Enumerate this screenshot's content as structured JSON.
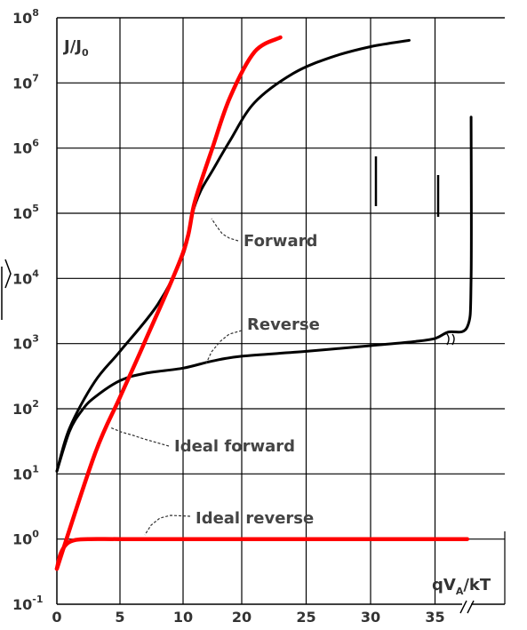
{
  "chart_data": {
    "type": "line",
    "title": "",
    "ylabel": "J/J0",
    "ylabel_main": "J/J",
    "ylabel_sub": "0",
    "xlabel": "qVA/kT",
    "xlabel_parts": {
      "pre": "qV",
      "sub": "A",
      "post": "/kT"
    },
    "y_scale": "log",
    "ylim": [
      0.1,
      100000000
    ],
    "x_tick_labels": [
      "0",
      "5",
      "10",
      "20",
      "25",
      "30",
      "35"
    ],
    "y_tick_exponents": [
      "-1",
      "0",
      "1",
      "2",
      "3",
      "4",
      "5",
      "6",
      "7",
      "8"
    ],
    "y_tick_base": "10",
    "grid": true,
    "series": [
      {
        "name": "Forward",
        "color": "#000000",
        "x": [
          0,
          1,
          3,
          5,
          8,
          10,
          11.6,
          13,
          15,
          18,
          21,
          24,
          27,
          30,
          33
        ],
        "y": [
          11,
          50,
          260,
          760,
          4000,
          23000,
          100000,
          220000,
          450000,
          1300000,
          5000000,
          14000000,
          25000000,
          36000000,
          45000000
        ]
      },
      {
        "name": "Reverse",
        "color": "#000000",
        "x": [
          0,
          1,
          2,
          3,
          5,
          7,
          10,
          15,
          20,
          25,
          30,
          33.5,
          35,
          36,
          37.5,
          37.8,
          37.8
        ],
        "y": [
          11,
          45,
          95,
          150,
          270,
          350,
          420,
          540,
          640,
          760,
          930,
          1080,
          1200,
          1500,
          1800,
          10000,
          3000000
        ]
      },
      {
        "name": "Ideal forward",
        "color": "#ff0000",
        "x": [
          0,
          3,
          5,
          7,
          10,
          12,
          15,
          18,
          21,
          23
        ],
        "y": [
          0.35,
          20,
          150,
          1100,
          25000,
          150000,
          1000000,
          6000000,
          30000000,
          50000000
        ]
      },
      {
        "name": "Ideal reverse",
        "color": "#ff0000",
        "x": [
          0,
          0.3,
          0.8,
          1.5,
          2.5,
          5,
          10,
          20,
          30,
          37.5
        ],
        "y": [
          0.35,
          0.6,
          0.85,
          0.97,
          1,
          1,
          1,
          1,
          1,
          1
        ]
      }
    ],
    "annotations": [
      {
        "text": "Forward",
        "target": "Forward"
      },
      {
        "text": "Reverse",
        "target": "Reverse"
      },
      {
        "text": "Ideal forward",
        "target": "Ideal forward"
      },
      {
        "text": "Ideal reverse",
        "target": "Ideal reverse"
      }
    ]
  }
}
